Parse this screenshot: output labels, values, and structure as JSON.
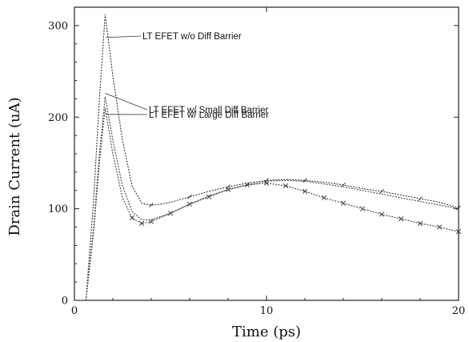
{
  "chart_data": {
    "type": "line",
    "title": "",
    "xlabel": "Time (ps)",
    "ylabel": "Drain  Current (uA)",
    "xlim": [
      0,
      20
    ],
    "ylim": [
      0,
      320
    ],
    "x_ticks": [
      0,
      10,
      20
    ],
    "y_ticks": [
      0,
      100,
      200,
      300
    ],
    "grid": false,
    "legend": "none",
    "series": [
      {
        "name": "LT EFET w/o Diff Barrier",
        "color": "#333333",
        "marker": "none",
        "x": [
          0,
          0.6,
          1.0,
          1.3,
          1.6,
          2.0,
          2.5,
          3.0,
          3.5,
          4.0,
          4.5,
          5.0,
          6.0,
          7.0,
          8.0,
          9.0,
          10.0,
          11.0,
          12.0,
          13.0,
          14.0,
          15.0,
          16.0,
          17.0,
          18.0,
          19.0,
          20.0
        ],
        "y": [
          0,
          0,
          110,
          220,
          312,
          245,
          175,
          125,
          106,
          104,
          105,
          107,
          113,
          119,
          124,
          128,
          131,
          132,
          131,
          129,
          126,
          122,
          119,
          115,
          111,
          107,
          101
        ]
      },
      {
        "name": "LT EFET w/ Small  Diff Barrier",
        "color": "#444444",
        "marker": "none",
        "x": [
          0,
          0.6,
          1.0,
          1.3,
          1.6,
          2.0,
          2.5,
          3.0,
          3.5,
          4.0,
          5.0,
          6.0,
          7.0,
          8.0,
          9.0,
          10.0,
          11.0,
          12.0,
          13.0,
          14.0,
          15.0,
          16.0,
          17.0,
          18.0,
          19.0,
          20.0
        ],
        "y": [
          0,
          0,
          80,
          160,
          222,
          175,
          125,
          97,
          88,
          88,
          95,
          105,
          114,
          121,
          126,
          130,
          131,
          130,
          127,
          124,
          120,
          116,
          112,
          108,
          104,
          100
        ]
      },
      {
        "name": "LT EFET w/ Large  Diff Barrier",
        "color": "#444444",
        "marker": "x",
        "x": [
          0,
          0.6,
          1.0,
          1.3,
          1.6,
          2.0,
          2.5,
          3.0,
          3.5,
          4.0,
          5.0,
          6.0,
          7.0,
          8.0,
          9.0,
          10.0,
          11.0,
          12.0,
          13.0,
          14.0,
          15.0,
          16.0,
          17.0,
          18.0,
          19.0,
          20.0
        ],
        "y": [
          0,
          0,
          75,
          150,
          210,
          160,
          112,
          90,
          84,
          86,
          95,
          105,
          113,
          121,
          126,
          128,
          125,
          119,
          112,
          106,
          100,
          94,
          89,
          84,
          80,
          75
        ]
      }
    ],
    "annotations": [
      {
        "text": "LT EFET w/o Diff Barrier",
        "anchor_x": 1.65,
        "anchor_y": 287
      },
      {
        "text": "LT EFET w/ Small  Diff Barrier",
        "anchor_x": 1.6,
        "anchor_y": 226
      },
      {
        "text": "LT EFET w/ Large  Diff Barrier",
        "anchor_x": 1.6,
        "anchor_y": 203
      }
    ]
  }
}
